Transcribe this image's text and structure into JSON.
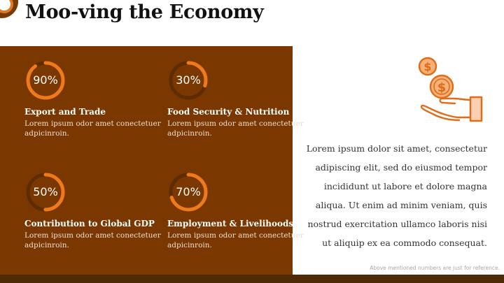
{
  "title": "Moo-ving the Economy",
  "metrics": [
    {
      "value_label": "90%",
      "value": 0.9,
      "title": "Export and Trade",
      "description": "Lorem ipsum odor amet conectetuer adpicinroin."
    },
    {
      "value_label": "30%",
      "value": 0.3,
      "title": "Food Security & Nutrition",
      "description": "Lorem ipsum odor amet conectetuer adpicinroin."
    },
    {
      "value_label": "50%",
      "value": 0.5,
      "title": "Contribution to Global GDP",
      "description": "Lorem ipsum odor amet conectetuer adpicinroin."
    },
    {
      "value_label": "70%",
      "value": 0.7,
      "title": "Employment & Livelihoods",
      "description": "Lorem ipsum odor amet conectetuer adpicinroin."
    }
  ],
  "body_text": "Lorem ipsum dolor sit amet, consectetur adipiscing elit, sed do eiusmod tempor incididunt ut labore et dolore magna aliqua. Ut enim ad minim veniam, quis nostrud exercitation ullamco laboris nisi ut aliquip ex ea commodo consequat.",
  "footnote": "Above mentioned numbers are just for reference.",
  "icons": {
    "corner": "ring-decoration-icon",
    "main": "hand-holding-coins-icon"
  },
  "colors": {
    "panel": "#7a3800",
    "accent": "#f07a1a",
    "ring_track": "#5e2c02",
    "bottom_bar": "#4e2a06"
  }
}
